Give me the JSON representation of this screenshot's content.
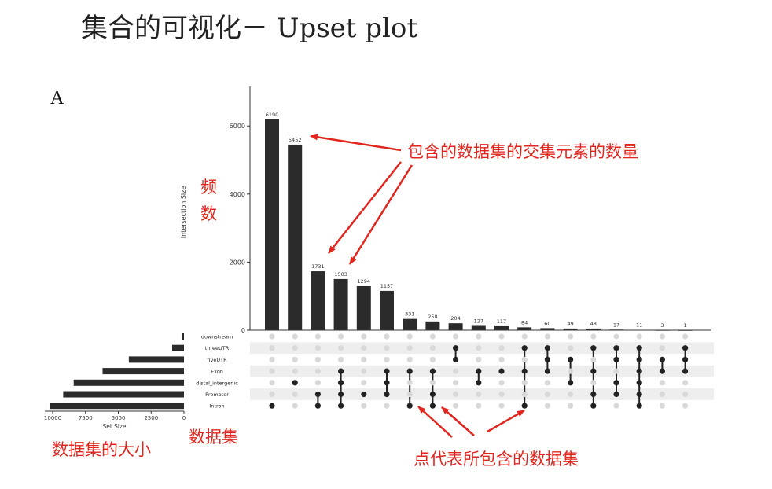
{
  "slide": {
    "title": "集合的可视化－ Upset plot",
    "panel_letter": "A"
  },
  "annotations": {
    "intersection_counts": "包含的数据集的交集元素的数量",
    "frequency_char1": "频",
    "frequency_char2": "数",
    "set_sizes": "数据集的大小",
    "datasets": "数据集",
    "dots": "点代表所包含的数据集"
  },
  "colors": {
    "bar": "#2b2b2b",
    "annotation": "#e0261f",
    "dot_active": "#222222",
    "dot_inactive": "#d9d9d9",
    "row_shade": "#eeeeee"
  },
  "chart_data": {
    "type": "bar",
    "subtype": "upset",
    "ylabel": "Intersection Size",
    "ylim": [
      0,
      6500
    ],
    "yticks": [
      0,
      2000,
      4000,
      6000
    ],
    "grid": false,
    "sets": [
      "downstream",
      "threeUTR",
      "fiveUTR",
      "Exon",
      "distal_intergenic",
      "Promoter",
      "Intron"
    ],
    "set_sizes": [
      180,
      900,
      4200,
      6200,
      8400,
      9200,
      10200
    ],
    "set_size_label": "Set Size",
    "set_size_ticks": [
      10000,
      7500,
      5000,
      2500,
      0
    ],
    "set_size_lim": [
      0,
      10600
    ],
    "intersections": [
      {
        "value": 6190,
        "sets": [
          "Intron"
        ]
      },
      {
        "value": 5452,
        "sets": [
          "distal_intergenic"
        ]
      },
      {
        "value": 1731,
        "sets": [
          "Promoter",
          "Intron"
        ]
      },
      {
        "value": 1503,
        "sets": [
          "Exon",
          "distal_intergenic",
          "Promoter",
          "Intron"
        ]
      },
      {
        "value": 1294,
        "sets": [
          "Promoter"
        ]
      },
      {
        "value": 1157,
        "sets": [
          "Exon",
          "distal_intergenic",
          "Promoter"
        ]
      },
      {
        "value": 331,
        "sets": [
          "Exon",
          "Intron"
        ]
      },
      {
        "value": 258,
        "sets": [
          "Exon",
          "Promoter",
          "Intron"
        ]
      },
      {
        "value": 204,
        "sets": [
          "threeUTR",
          "fiveUTR"
        ]
      },
      {
        "value": 127,
        "sets": [
          "Exon",
          "distal_intergenic"
        ]
      },
      {
        "value": 117,
        "sets": [
          "Exon"
        ]
      },
      {
        "value": 84,
        "sets": [
          "threeUTR",
          "Exon",
          "Intron"
        ]
      },
      {
        "value": 60,
        "sets": [
          "threeUTR",
          "fiveUTR",
          "Exon"
        ]
      },
      {
        "value": 49,
        "sets": [
          "fiveUTR",
          "distal_intergenic"
        ]
      },
      {
        "value": 48,
        "sets": [
          "threeUTR",
          "Exon",
          "Promoter",
          "Intron"
        ]
      },
      {
        "value": 17,
        "sets": [
          "threeUTR",
          "fiveUTR",
          "distal_intergenic",
          "Promoter"
        ]
      },
      {
        "value": 11,
        "sets": [
          "threeUTR",
          "fiveUTR",
          "Exon",
          "distal_intergenic",
          "Promoter",
          "Intron"
        ]
      },
      {
        "value": 3,
        "sets": [
          "fiveUTR",
          "Exon"
        ]
      },
      {
        "value": 1,
        "sets": [
          "threeUTR",
          "fiveUTR",
          "Exon"
        ]
      }
    ]
  }
}
